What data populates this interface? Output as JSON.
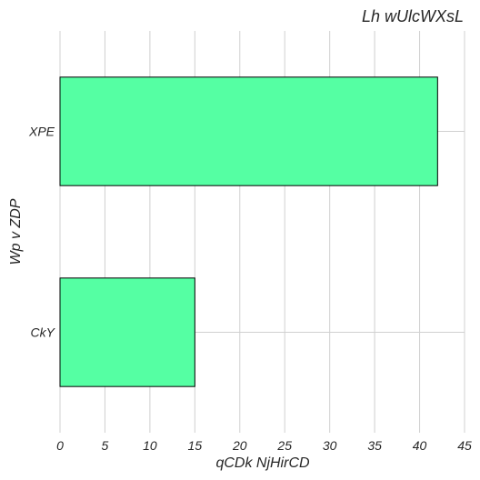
{
  "chart_data": {
    "type": "bar",
    "orientation": "horizontal",
    "title": "Lh wUlcWXsL",
    "xlabel": "qCDk NjHirCD",
    "ylabel": "Wp v ZDP",
    "categories": [
      "XPE",
      "CkY"
    ],
    "values": [
      42,
      15
    ],
    "xlim": [
      0,
      45
    ],
    "xticks": [
      0,
      5,
      10,
      15,
      20,
      25,
      30,
      35,
      40,
      45
    ],
    "grid": true,
    "bar_color": "#55ffa3",
    "edge_color": "#000000"
  }
}
